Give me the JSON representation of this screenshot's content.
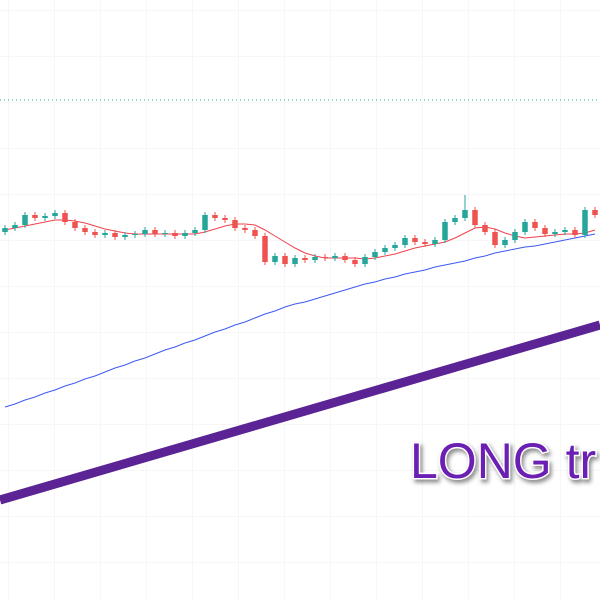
{
  "chart_data": {
    "type": "candlestick",
    "x": [
      0,
      1,
      2,
      3,
      4,
      5,
      6,
      7,
      8,
      9,
      10,
      11,
      12,
      13,
      14,
      15,
      16,
      17,
      18,
      19,
      20,
      21,
      22,
      23,
      24,
      25,
      26,
      27,
      28,
      29,
      30,
      31,
      32,
      33,
      34,
      35,
      36,
      37,
      38,
      39,
      40,
      41,
      42,
      43,
      44,
      45,
      46,
      47,
      48,
      49,
      50,
      51,
      52,
      53,
      54,
      55,
      56,
      57,
      58,
      59
    ],
    "xlim": [
      -0.5,
      59.5
    ],
    "ylim": [
      0,
      600
    ],
    "open": [
      368,
      372,
      375,
      385,
      382,
      384,
      387,
      378,
      372,
      368,
      365,
      367,
      363,
      365,
      366,
      370,
      366,
      367,
      364,
      367,
      370,
      385,
      382,
      380,
      372,
      370,
      364,
      338,
      344,
      336,
      342,
      340,
      343,
      342,
      344,
      340,
      336,
      343,
      348,
      352,
      355,
      362,
      358,
      356,
      360,
      378,
      382,
      390,
      375,
      368,
      355,
      360,
      368,
      378,
      372,
      366,
      368,
      370,
      365,
      390
    ],
    "high": [
      375,
      378,
      388,
      388,
      387,
      390,
      390,
      381,
      375,
      371,
      370,
      370,
      368,
      369,
      373,
      373,
      370,
      370,
      370,
      373,
      388,
      388,
      385,
      383,
      375,
      373,
      367,
      347,
      347,
      345,
      345,
      346,
      346,
      347,
      347,
      343,
      346,
      351,
      355,
      358,
      365,
      365,
      361,
      363,
      381,
      385,
      405,
      393,
      378,
      371,
      363,
      371,
      381,
      381,
      375,
      371,
      373,
      373,
      393,
      393
    ],
    "low": [
      365,
      369,
      372,
      379,
      379,
      381,
      375,
      369,
      365,
      362,
      362,
      360,
      360,
      362,
      363,
      363,
      363,
      361,
      361,
      364,
      367,
      379,
      377,
      369,
      367,
      361,
      335,
      335,
      333,
      333,
      337,
      337,
      339,
      339,
      337,
      333,
      333,
      340,
      345,
      349,
      352,
      355,
      353,
      353,
      357,
      375,
      379,
      372,
      365,
      352,
      352,
      357,
      365,
      369,
      363,
      363,
      365,
      362,
      362,
      382
    ],
    "close": [
      372,
      375,
      385,
      382,
      384,
      387,
      378,
      372,
      368,
      365,
      367,
      363,
      365,
      366,
      370,
      366,
      367,
      364,
      367,
      370,
      385,
      382,
      380,
      372,
      370,
      364,
      338,
      344,
      336,
      342,
      340,
      343,
      342,
      344,
      340,
      336,
      343,
      348,
      352,
      355,
      362,
      358,
      356,
      360,
      378,
      382,
      390,
      375,
      368,
      355,
      360,
      368,
      378,
      372,
      366,
      368,
      370,
      365,
      390,
      385
    ],
    "up_color": "#26a69a",
    "down_color": "#ef5350",
    "lines": [
      {
        "color": "#f0424c",
        "values": [
          370,
          372,
          374,
          376,
          378,
          380,
          380,
          379,
          377,
          374,
          371,
          369,
          367,
          366,
          366,
          366,
          366,
          366,
          366,
          366,
          368,
          371,
          374,
          376,
          376,
          375,
          370,
          364,
          358,
          352,
          347,
          344,
          342,
          342,
          342,
          342,
          341,
          342,
          344,
          346,
          349,
          352,
          354,
          356,
          358,
          362,
          367,
          372,
          373,
          371,
          367,
          364,
          362,
          363,
          364,
          365,
          366,
          366,
          367,
          370
        ]
      },
      {
        "color": "#3d5af1",
        "values": [
          193,
          196,
          200,
          203,
          207,
          210,
          214,
          217,
          221,
          224,
          228,
          232,
          235,
          239,
          242,
          246,
          250,
          253,
          257,
          260,
          264,
          268,
          271,
          275,
          278,
          282,
          286,
          289,
          293,
          296,
          298,
          301,
          304,
          307,
          310,
          313,
          316,
          318,
          321,
          323,
          326,
          328,
          330,
          333,
          335,
          337,
          339,
          342,
          344,
          347,
          349,
          351,
          353,
          354,
          356,
          358,
          360,
          362,
          364,
          366
        ]
      }
    ],
    "reference_line": {
      "value": 500,
      "color": "#26a69a"
    },
    "trendline": {
      "x": [
        -0.5,
        59.5
      ],
      "values": [
        100,
        275
      ],
      "color": "#5b2394"
    },
    "annotation": {
      "text": "LONG tr",
      "color": "#6b1fb3"
    }
  }
}
